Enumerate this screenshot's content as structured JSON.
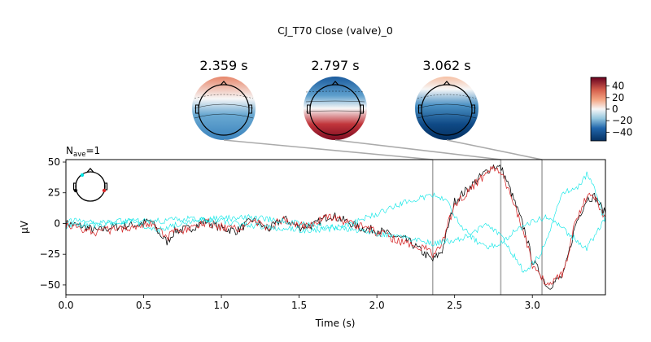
{
  "chart_data": {
    "type": "line",
    "title": "CJ_T70 Close (valve)_0",
    "nave_label": "N",
    "nave_sub": "ave",
    "nave_value": "=1",
    "xlabel": "Time (s)",
    "ylabel": "µV",
    "xlim": [
      0.0,
      3.47
    ],
    "ylim": [
      -58,
      52
    ],
    "xticks": [
      0.0,
      0.5,
      1.0,
      1.5,
      2.0,
      2.5,
      3.0
    ],
    "xtick_labels": [
      "0.0",
      "0.5",
      "1.0",
      "1.5",
      "2.0",
      "2.5",
      "3.0"
    ],
    "yticks": [
      50,
      25,
      0,
      -25,
      -50
    ],
    "ytick_labels": [
      "50",
      "25",
      "0",
      "−25",
      "−50"
    ],
    "grid": false,
    "topomap_times": [
      2.359,
      2.797,
      3.062
    ],
    "topomap_labels": [
      "2.359 s",
      "2.797 s",
      "3.062 s"
    ],
    "colorbar": {
      "range": [
        -55,
        55
      ],
      "ticks": [
        40,
        20,
        0,
        -20,
        -40
      ],
      "tick_labels": [
        "40",
        "20",
        "0",
        "−20",
        "−40"
      ],
      "cmap": "RdBu_r"
    },
    "series": [
      {
        "color": "#000000",
        "points": [
          [
            0.0,
            0
          ],
          [
            0.1,
            -2
          ],
          [
            0.2,
            -6
          ],
          [
            0.3,
            -3
          ],
          [
            0.45,
            -1
          ],
          [
            0.55,
            2
          ],
          [
            0.6,
            -8
          ],
          [
            0.65,
            -15
          ],
          [
            0.7,
            -6
          ],
          [
            0.8,
            -4
          ],
          [
            0.9,
            2
          ],
          [
            1.0,
            -4
          ],
          [
            1.1,
            -6
          ],
          [
            1.2,
            3
          ],
          [
            1.3,
            -5
          ],
          [
            1.4,
            4
          ],
          [
            1.5,
            -3
          ],
          [
            1.6,
            -1
          ],
          [
            1.7,
            7
          ],
          [
            1.8,
            2
          ],
          [
            1.9,
            -4
          ],
          [
            2.0,
            -5
          ],
          [
            2.1,
            -10
          ],
          [
            2.2,
            -14
          ],
          [
            2.3,
            -24
          ],
          [
            2.36,
            -30
          ],
          [
            2.42,
            -22
          ],
          [
            2.5,
            18
          ],
          [
            2.6,
            30
          ],
          [
            2.7,
            42
          ],
          [
            2.75,
            47
          ],
          [
            2.8,
            45
          ],
          [
            2.85,
            30
          ],
          [
            2.95,
            -5
          ],
          [
            3.0,
            -30
          ],
          [
            3.05,
            -40
          ],
          [
            3.1,
            -52
          ],
          [
            3.2,
            -42
          ],
          [
            3.28,
            0
          ],
          [
            3.35,
            20
          ],
          [
            3.4,
            22
          ],
          [
            3.47,
            8
          ]
        ]
      },
      {
        "color": "#d62728",
        "points": [
          [
            0.0,
            -2
          ],
          [
            0.1,
            -4
          ],
          [
            0.2,
            -7
          ],
          [
            0.3,
            -5
          ],
          [
            0.45,
            -2
          ],
          [
            0.55,
            1
          ],
          [
            0.6,
            -6
          ],
          [
            0.65,
            -12
          ],
          [
            0.7,
            -7
          ],
          [
            0.8,
            -5
          ],
          [
            0.9,
            1
          ],
          [
            1.0,
            -3
          ],
          [
            1.1,
            -5
          ],
          [
            1.2,
            2
          ],
          [
            1.3,
            -3
          ],
          [
            1.4,
            3
          ],
          [
            1.5,
            -2
          ],
          [
            1.6,
            0
          ],
          [
            1.7,
            6
          ],
          [
            1.8,
            1
          ],
          [
            1.9,
            -3
          ],
          [
            2.0,
            -7
          ],
          [
            2.1,
            -12
          ],
          [
            2.2,
            -16
          ],
          [
            2.3,
            -20
          ],
          [
            2.36,
            -25
          ],
          [
            2.42,
            -15
          ],
          [
            2.5,
            15
          ],
          [
            2.6,
            28
          ],
          [
            2.7,
            40
          ],
          [
            2.75,
            45
          ],
          [
            2.8,
            43
          ],
          [
            2.85,
            26
          ],
          [
            2.95,
            -8
          ],
          [
            3.0,
            -34
          ],
          [
            3.05,
            -42
          ],
          [
            3.1,
            -50
          ],
          [
            3.2,
            -40
          ],
          [
            3.28,
            3
          ],
          [
            3.35,
            22
          ],
          [
            3.4,
            20
          ],
          [
            3.47,
            5
          ]
        ]
      },
      {
        "color": "#00e5e5",
        "points": [
          [
            0.0,
            3
          ],
          [
            0.2,
            1
          ],
          [
            0.4,
            2
          ],
          [
            0.6,
            -5
          ],
          [
            0.8,
            2
          ],
          [
            1.0,
            4
          ],
          [
            1.2,
            5
          ],
          [
            1.4,
            2
          ],
          [
            1.6,
            -2
          ],
          [
            1.8,
            -4
          ],
          [
            2.0,
            -8
          ],
          [
            2.2,
            -12
          ],
          [
            2.36,
            -16
          ],
          [
            2.5,
            -14
          ],
          [
            2.6,
            -10
          ],
          [
            2.7,
            0
          ],
          [
            2.8,
            -10
          ],
          [
            2.9,
            -30
          ],
          [
            2.95,
            -40
          ],
          [
            3.05,
            -25
          ],
          [
            3.1,
            -10
          ],
          [
            3.15,
            10
          ],
          [
            3.2,
            25
          ],
          [
            3.3,
            30
          ],
          [
            3.35,
            40
          ],
          [
            3.4,
            28
          ],
          [
            3.47,
            0
          ]
        ]
      },
      {
        "color": "#00e5e5",
        "points": [
          [
            0.0,
            -2
          ],
          [
            0.2,
            -1
          ],
          [
            0.4,
            2
          ],
          [
            0.6,
            2
          ],
          [
            0.8,
            4
          ],
          [
            1.0,
            2
          ],
          [
            1.2,
            -2
          ],
          [
            1.4,
            -4
          ],
          [
            1.6,
            -6
          ],
          [
            1.8,
            -2
          ],
          [
            2.0,
            8
          ],
          [
            2.2,
            18
          ],
          [
            2.36,
            23
          ],
          [
            2.45,
            18
          ],
          [
            2.5,
            5
          ],
          [
            2.6,
            -10
          ],
          [
            2.7,
            -20
          ],
          [
            2.8,
            -15
          ],
          [
            2.9,
            -5
          ],
          [
            3.0,
            2
          ],
          [
            3.1,
            5
          ],
          [
            3.2,
            -5
          ],
          [
            3.3,
            -15
          ],
          [
            3.35,
            -20
          ],
          [
            3.4,
            -10
          ],
          [
            3.47,
            5
          ]
        ]
      }
    ]
  },
  "sensor_inset": {
    "markers": [
      {
        "color": "#00e5e5"
      },
      {
        "color": "#000000"
      },
      {
        "color": "#d62728"
      }
    ]
  }
}
